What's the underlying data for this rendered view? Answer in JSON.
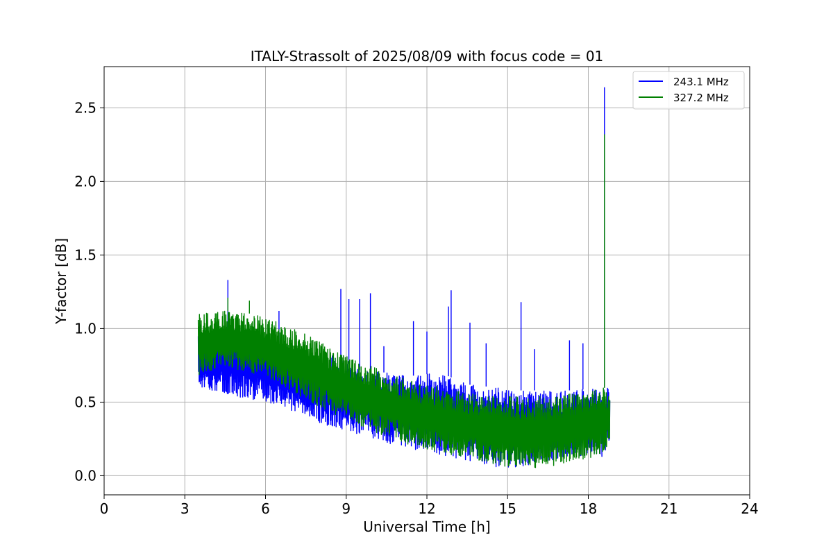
{
  "chart_data": {
    "type": "line",
    "title": "ITALY-Strassolt of 2025/08/09 with focus code = 01",
    "xlabel": "Universal Time [h]",
    "ylabel": "Y-factor [dB]",
    "xlim": [
      0,
      24
    ],
    "ylim": [
      -0.13,
      2.78
    ],
    "xticks": [
      0,
      3,
      6,
      9,
      12,
      15,
      18,
      21,
      24
    ],
    "xtick_labels": [
      "0",
      "3",
      "6",
      "9",
      "12",
      "15",
      "18",
      "21",
      "24"
    ],
    "yticks": [
      0.0,
      0.5,
      1.0,
      1.5,
      2.0,
      2.5
    ],
    "ytick_labels": [
      "0.0",
      "0.5",
      "1.0",
      "1.5",
      "2.0",
      "2.5"
    ],
    "grid": true,
    "legend_position": "upper right",
    "x_range_of_data": [
      3.5,
      18.8
    ],
    "series": [
      {
        "name": "243.1 MHz",
        "color": "#0000ff",
        "envelope": {
          "x": [
            3.5,
            4.5,
            5.5,
            6.5,
            7.5,
            8.5,
            9.5,
            10.5,
            11.5,
            12.5,
            13.5,
            14.5,
            15.5,
            16.5,
            17.5,
            18.5,
            18.8
          ],
          "upper": [
            0.98,
            1.0,
            0.98,
            0.9,
            0.78,
            0.82,
            0.72,
            0.7,
            0.68,
            0.7,
            0.62,
            0.6,
            0.58,
            0.58,
            0.58,
            0.6,
            0.6
          ],
          "lower": [
            0.6,
            0.55,
            0.52,
            0.48,
            0.4,
            0.32,
            0.28,
            0.22,
            0.18,
            0.14,
            0.1,
            0.06,
            0.05,
            0.1,
            0.14,
            0.12,
            0.22
          ]
        },
        "spikes": [
          {
            "x": 4.6,
            "y": 1.33
          },
          {
            "x": 6.5,
            "y": 1.12
          },
          {
            "x": 8.8,
            "y": 1.27
          },
          {
            "x": 9.1,
            "y": 1.2
          },
          {
            "x": 9.5,
            "y": 1.2
          },
          {
            "x": 9.9,
            "y": 1.24
          },
          {
            "x": 10.4,
            "y": 0.88
          },
          {
            "x": 11.5,
            "y": 1.05
          },
          {
            "x": 12.0,
            "y": 0.98
          },
          {
            "x": 12.8,
            "y": 1.15
          },
          {
            "x": 12.9,
            "y": 1.26
          },
          {
            "x": 13.6,
            "y": 1.04
          },
          {
            "x": 14.2,
            "y": 0.9
          },
          {
            "x": 15.5,
            "y": 1.18
          },
          {
            "x": 16.0,
            "y": 0.86
          },
          {
            "x": 17.3,
            "y": 0.92
          },
          {
            "x": 17.8,
            "y": 0.9
          },
          {
            "x": 18.6,
            "y": 2.64
          }
        ]
      },
      {
        "name": "327.2 MHz",
        "color": "#008000",
        "envelope": {
          "x": [
            3.5,
            4.5,
            5.5,
            6.5,
            7.5,
            8.5,
            9.5,
            10.5,
            11.5,
            12.5,
            13.5,
            14.5,
            15.5,
            16.5,
            17.5,
            18.5,
            18.8
          ],
          "upper": [
            1.1,
            1.12,
            1.1,
            1.04,
            0.96,
            0.86,
            0.78,
            0.7,
            0.64,
            0.6,
            0.56,
            0.54,
            0.54,
            0.54,
            0.56,
            0.62,
            0.55
          ],
          "lower": [
            0.68,
            0.74,
            0.7,
            0.62,
            0.52,
            0.42,
            0.34,
            0.26,
            0.2,
            0.16,
            0.12,
            0.08,
            0.04,
            0.06,
            0.1,
            0.14,
            0.2
          ]
        },
        "spikes": [
          {
            "x": 4.6,
            "y": 1.21
          },
          {
            "x": 5.4,
            "y": 1.19
          },
          {
            "x": 18.6,
            "y": 2.32
          }
        ]
      }
    ]
  }
}
